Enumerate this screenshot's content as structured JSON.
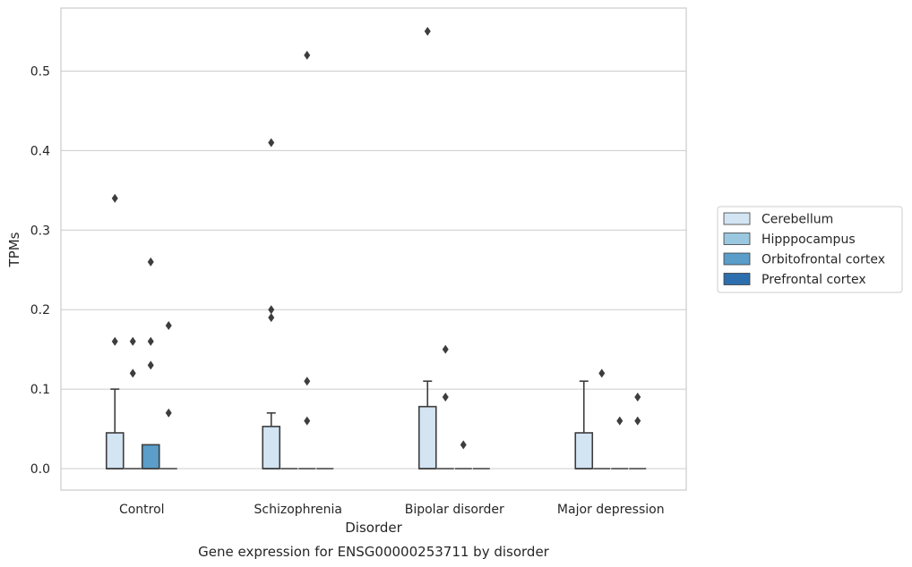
{
  "chart_data": {
    "type": "box",
    "title": "Gene expression for ENSG00000253711 by disorder",
    "xlabel": "Disorder",
    "ylabel": "TPMs",
    "ylim": [
      -0.027,
      0.58
    ],
    "yticks": [
      0.0,
      0.1,
      0.2,
      0.3,
      0.4,
      0.5
    ],
    "ytick_labels": [
      "0.0",
      "0.1",
      "0.2",
      "0.3",
      "0.4",
      "0.5"
    ],
    "grid": "horizontal",
    "legend_position": "right",
    "categories": [
      "Control",
      "Schizophrenia",
      "Bipolar disorder",
      "Major depression"
    ],
    "series": [
      {
        "name": "Cerebellum",
        "color": "#d3e4f3",
        "boxes": [
          {
            "q1": 0.0,
            "median": 0.0,
            "q3": 0.045,
            "whisker_low": 0.0,
            "whisker_high": 0.1,
            "outliers": [
              0.34,
              0.16
            ]
          },
          {
            "q1": 0.0,
            "median": 0.0,
            "q3": 0.053,
            "whisker_low": 0.0,
            "whisker_high": 0.07,
            "outliers": [
              0.41,
              0.2,
              0.19
            ]
          },
          {
            "q1": 0.0,
            "median": 0.0,
            "q3": 0.078,
            "whisker_low": 0.0,
            "whisker_high": 0.11,
            "outliers": [
              0.55
            ]
          },
          {
            "q1": 0.0,
            "median": 0.0,
            "q3": 0.045,
            "whisker_low": 0.0,
            "whisker_high": 0.11,
            "outliers": []
          }
        ]
      },
      {
        "name": "Hipppocampus",
        "color": "#9ac8e0",
        "boxes": [
          {
            "q1": 0.0,
            "median": 0.0,
            "q3": 0.0,
            "whisker_low": 0.0,
            "whisker_high": 0.0,
            "outliers": [
              0.16,
              0.12
            ]
          },
          {
            "q1": 0.0,
            "median": 0.0,
            "q3": 0.0,
            "whisker_low": 0.0,
            "whisker_high": 0.0,
            "outliers": []
          },
          {
            "q1": 0.0,
            "median": 0.0,
            "q3": 0.0,
            "whisker_low": 0.0,
            "whisker_high": 0.0,
            "outliers": [
              0.15,
              0.09
            ]
          },
          {
            "q1": 0.0,
            "median": 0.0,
            "q3": 0.0,
            "whisker_low": 0.0,
            "whisker_high": 0.0,
            "outliers": [
              0.12
            ]
          }
        ]
      },
      {
        "name": "Orbitofrontal cortex",
        "color": "#5a9ec9",
        "boxes": [
          {
            "q1": 0.0,
            "median": 0.0,
            "q3": 0.03,
            "whisker_low": 0.0,
            "whisker_high": 0.03,
            "outliers": [
              0.26,
              0.16,
              0.13
            ]
          },
          {
            "q1": 0.0,
            "median": 0.0,
            "q3": 0.0,
            "whisker_low": 0.0,
            "whisker_high": 0.0,
            "outliers": [
              0.52,
              0.11,
              0.06
            ]
          },
          {
            "q1": 0.0,
            "median": 0.0,
            "q3": 0.0,
            "whisker_low": 0.0,
            "whisker_high": 0.0,
            "outliers": [
              0.03
            ]
          },
          {
            "q1": 0.0,
            "median": 0.0,
            "q3": 0.0,
            "whisker_low": 0.0,
            "whisker_high": 0.0,
            "outliers": [
              0.06
            ]
          }
        ]
      },
      {
        "name": "Prefrontal cortex",
        "color": "#2d6eae",
        "boxes": [
          {
            "q1": 0.0,
            "median": 0.0,
            "q3": 0.0,
            "whisker_low": 0.0,
            "whisker_high": 0.0,
            "outliers": [
              0.18,
              0.07
            ]
          },
          {
            "q1": 0.0,
            "median": 0.0,
            "q3": 0.0,
            "whisker_low": 0.0,
            "whisker_high": 0.0,
            "outliers": []
          },
          {
            "q1": 0.0,
            "median": 0.0,
            "q3": 0.0,
            "whisker_low": 0.0,
            "whisker_high": 0.0,
            "outliers": []
          },
          {
            "q1": 0.0,
            "median": 0.0,
            "q3": 0.0,
            "whisker_low": 0.0,
            "whisker_high": 0.0,
            "outliers": [
              0.09,
              0.06
            ]
          }
        ]
      }
    ]
  }
}
